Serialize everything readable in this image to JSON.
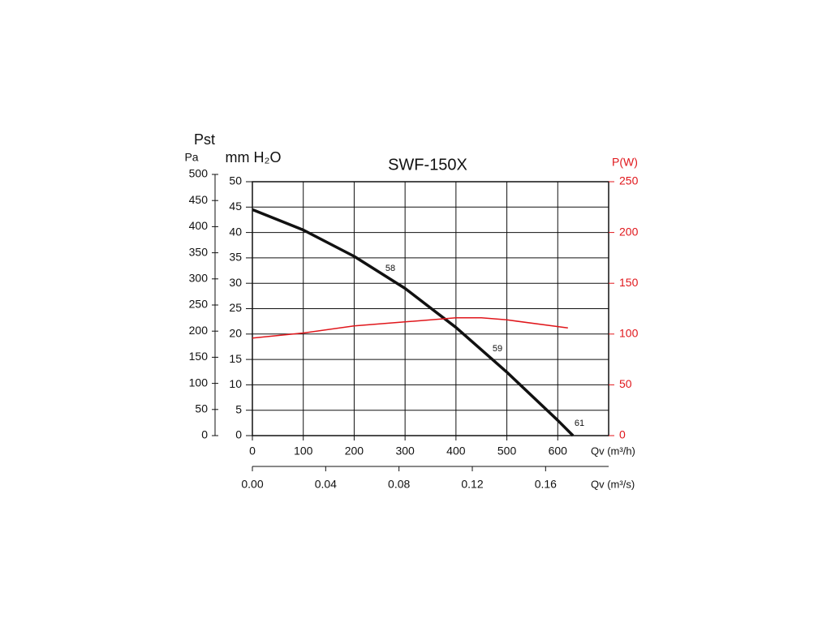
{
  "chart_data": {
    "type": "line",
    "title": "SWF-150X",
    "y_label": "Pst",
    "y_unit_label": "mm H₂O",
    "pa_label": "Pa",
    "y2_label": "P(W)",
    "x_label": "Qv (m³/h)",
    "x2_label": "Qv (m³/s)",
    "xlim": [
      0,
      700
    ],
    "xticks": [
      0,
      100,
      200,
      300,
      400,
      500,
      600
    ],
    "x2lim": [
      0,
      0.1944
    ],
    "x2ticks": [
      {
        "value": 0,
        "label": "0.00"
      },
      {
        "value": 0.04,
        "label": "0.04"
      },
      {
        "value": 0.08,
        "label": "0.08"
      },
      {
        "value": 0.12,
        "label": "0.12"
      },
      {
        "value": 0.16,
        "label": "0.16"
      }
    ],
    "ylim": [
      0,
      50
    ],
    "yticks": [
      0,
      5,
      10,
      15,
      20,
      25,
      30,
      35,
      40,
      45,
      50
    ],
    "pa_lim": [
      0,
      500
    ],
    "pa_ticks": [
      0,
      50,
      100,
      150,
      200,
      250,
      300,
      350,
      400,
      450,
      500
    ],
    "y2lim": [
      0,
      250
    ],
    "y2ticks": [
      0,
      50,
      100,
      150,
      200,
      250
    ],
    "y2_color": "#e0161b",
    "grid": true,
    "series": [
      {
        "color": "#111111",
        "x": [
          0,
          100,
          200,
          300,
          400,
          500,
          600,
          630
        ],
        "values": [
          44.5,
          40.5,
          35.3,
          29,
          21.3,
          12.5,
          3,
          0
        ]
      },
      {
        "color": "#e0161b",
        "axis": "y2",
        "x": [
          0,
          100,
          200,
          300,
          400,
          450,
          500,
          620
        ],
        "values": [
          96,
          101,
          108,
          112,
          116,
          116,
          114,
          106
        ]
      }
    ],
    "annotations": [
      "58",
      "59",
      "61"
    ]
  }
}
